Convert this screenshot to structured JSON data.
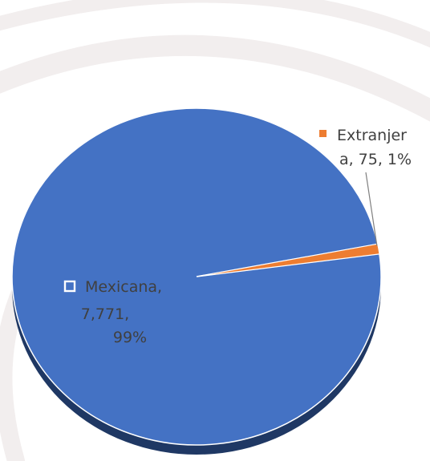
{
  "chart_data": {
    "type": "pie",
    "title": "",
    "slices": [
      {
        "category": "Mexicana",
        "value": 7771,
        "percent": 99,
        "label_lines": [
          "Mexicana,",
          "7,771,",
          "99%"
        ],
        "color": "#4472C4"
      },
      {
        "category": "Extranjera",
        "value": 75,
        "percent": 1,
        "label_lines": [
          "Extranjer",
          "a, 75, 1%"
        ],
        "color": "#ED7D31"
      }
    ],
    "legend": "none",
    "style": "3d-tilted"
  },
  "colors": {
    "shadow": "#1F3864",
    "label_text": "#404040",
    "leader_line": "#7f7f7f",
    "marker_outline": "#ffffff",
    "background_swoosh": "#f2eeee"
  }
}
